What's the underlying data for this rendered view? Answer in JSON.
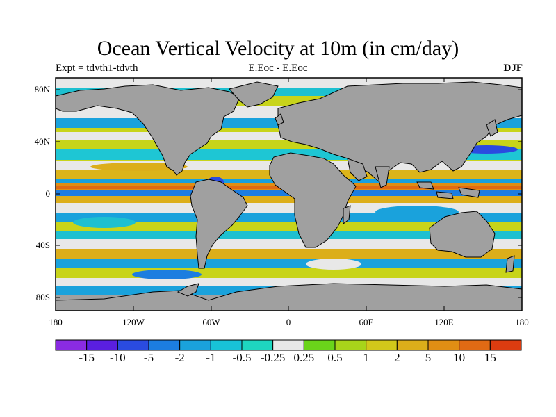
{
  "title": "Ocean Vertical Velocity at 10m (in cm/day)",
  "subtitle_left": "Expt = tdvth1-tdvth",
  "subtitle_center": "E.Eoc - E.Eoc",
  "subtitle_right": "DJF",
  "map": {
    "projection": "cylindrical-equidistant",
    "land_color": "#a0a0a0",
    "coastline_color": "#000000",
    "lon_range": [
      -180,
      180
    ],
    "lat_range": [
      -90,
      90
    ],
    "lat_ticks": [
      "80N",
      "40N",
      "0",
      "40S",
      "80S"
    ],
    "lon_ticks": [
      "180",
      "120W",
      "60W",
      "0",
      "60E",
      "120E",
      "180"
    ]
  },
  "colorbar": {
    "colors": [
      "#8a2be2",
      "#5a1fe0",
      "#2a4be0",
      "#1c7de0",
      "#1aa2dc",
      "#18c2d8",
      "#1ed6c0",
      "#e8e8e8",
      "#6ad41a",
      "#a8d41a",
      "#d2c81a",
      "#dcae1a",
      "#e08e14",
      "#e06a14",
      "#dc3c10"
    ],
    "labels": [
      "-15",
      "-10",
      "-5",
      "-2",
      "-1",
      "-0.5",
      "-0.25",
      "0.25",
      "0.5",
      "1",
      "2",
      "5",
      "10",
      "15"
    ]
  }
}
